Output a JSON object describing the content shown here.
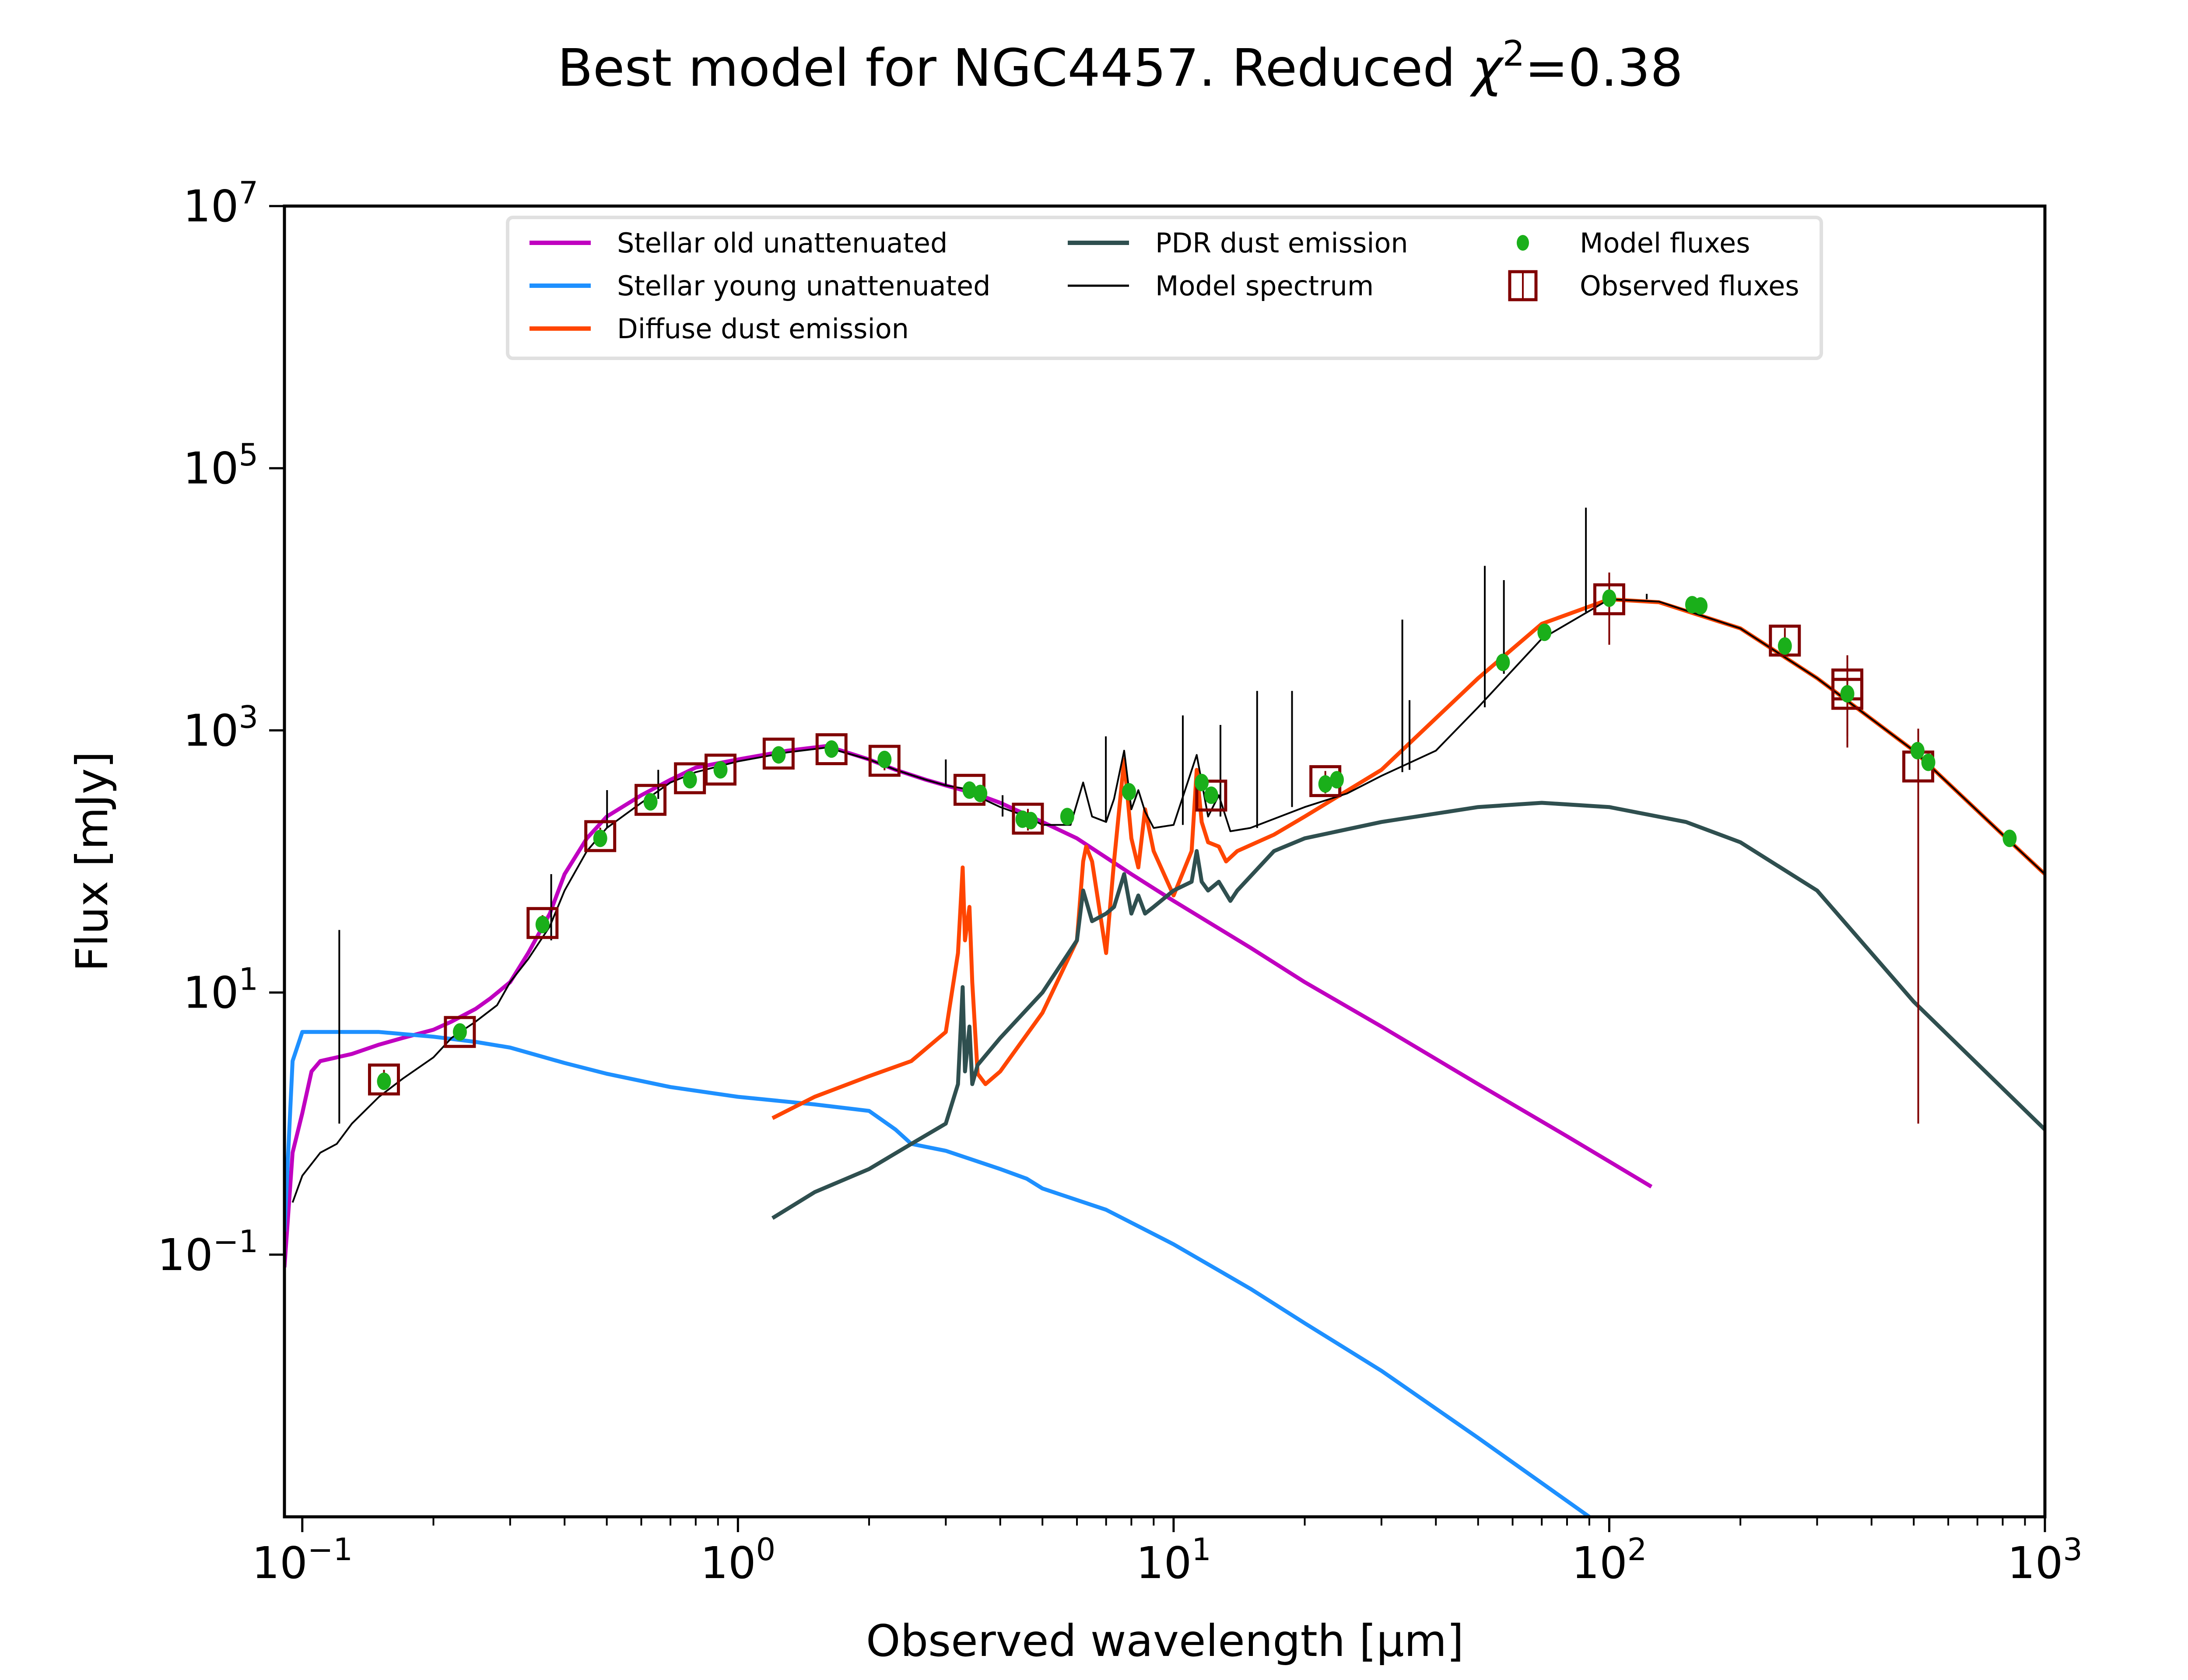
{
  "chart_data": {
    "type": "line",
    "title": "Best model for NGC4457. Reduced χ²=0.38",
    "title_parts": {
      "prefix": "Best model for NGC4457. Reduced ",
      "chi": "χ",
      "sup": "2",
      "suffix": "=0.38"
    },
    "xlabel": "Observed wavelength [μm]",
    "ylabel": "Flux [mJy]",
    "xscale": "log",
    "yscale": "log",
    "xlim": [
      0.091,
      1000
    ],
    "ylim": [
      0.001,
      10000000
    ],
    "x_ticks": [
      {
        "value": 0.1,
        "base": "10",
        "exp": "−1"
      },
      {
        "value": 1,
        "base": "10",
        "exp": "0"
      },
      {
        "value": 10,
        "base": "10",
        "exp": "1"
      },
      {
        "value": 100,
        "base": "10",
        "exp": "2"
      },
      {
        "value": 1000,
        "base": "10",
        "exp": "3"
      }
    ],
    "y_ticks": [
      {
        "value": 0.1,
        "base": "10",
        "exp": "−1"
      },
      {
        "value": 10,
        "base": "10",
        "exp": "1"
      },
      {
        "value": 1000,
        "base": "10",
        "exp": "3"
      },
      {
        "value": 100000,
        "base": "10",
        "exp": "5"
      },
      {
        "value": 10000000,
        "base": "10",
        "exp": "7"
      }
    ],
    "grid": false,
    "legend": {
      "placement": "top-center",
      "columns": 3,
      "entries": [
        {
          "label": "Stellar old unattenuated",
          "kind": "line",
          "color": "#c000c0"
        },
        {
          "label": "Stellar young unattenuated",
          "kind": "line",
          "color": "#1e90ff"
        },
        {
          "label": "Diffuse dust emission",
          "kind": "line",
          "color": "#ff4500"
        },
        {
          "label": "PDR dust emission",
          "kind": "line",
          "color": "#2f4f4f"
        },
        {
          "label": "Model spectrum",
          "kind": "line",
          "color": "#000000"
        },
        {
          "label": "Model fluxes",
          "kind": "marker-dot",
          "color": "#1aaf1a"
        },
        {
          "label": "Observed fluxes",
          "kind": "marker-square",
          "color": "#800000"
        }
      ]
    },
    "series": [
      {
        "name": "Stellar old unattenuated",
        "color": "#c000c0",
        "x": [
          0.091,
          0.095,
          0.1,
          0.105,
          0.11,
          0.12,
          0.13,
          0.15,
          0.17,
          0.2,
          0.22,
          0.25,
          0.27,
          0.3,
          0.33,
          0.37,
          0.4,
          0.45,
          0.5,
          0.6,
          0.7,
          0.8,
          1.0,
          1.3,
          1.6,
          2.0,
          2.3,
          2.7,
          3.0,
          3.5,
          4.0,
          5.0,
          6.0,
          8.0,
          10,
          15,
          20,
          30,
          50,
          80,
          125
        ],
        "y": [
          0.08,
          0.6,
          1.2,
          2.5,
          3.0,
          3.2,
          3.4,
          4.0,
          4.5,
          5.2,
          6.0,
          7.5,
          9.0,
          12,
          20,
          40,
          80,
          150,
          220,
          320,
          420,
          520,
          600,
          700,
          760,
          600,
          500,
          420,
          380,
          330,
          280,
          200,
          150,
          80,
          50,
          22,
          12,
          5.5,
          2.0,
          0.8,
          0.33
        ]
      },
      {
        "name": "Stellar young unattenuated",
        "color": "#1e90ff",
        "x": [
          0.091,
          0.095,
          0.1,
          0.12,
          0.15,
          0.2,
          0.25,
          0.3,
          0.4,
          0.5,
          0.7,
          1.0,
          1.5,
          2.0,
          2.3,
          2.5,
          3.0,
          4.0,
          4.6,
          5.0,
          7.0,
          10,
          15,
          20,
          30,
          50,
          90
        ],
        "y": [
          0.15,
          3.0,
          5.0,
          5.0,
          5.0,
          4.6,
          4.2,
          3.8,
          2.9,
          2.4,
          1.9,
          1.6,
          1.4,
          1.25,
          0.9,
          0.7,
          0.62,
          0.45,
          0.38,
          0.32,
          0.22,
          0.12,
          0.055,
          0.03,
          0.013,
          0.004,
          0.001
        ]
      },
      {
        "name": "Diffuse dust emission",
        "color": "#ff4500",
        "x": [
          1.2,
          1.5,
          2.0,
          2.5,
          3.0,
          3.2,
          3.28,
          3.32,
          3.4,
          3.45,
          3.55,
          3.7,
          4.0,
          5.0,
          6.0,
          6.2,
          6.3,
          6.5,
          7.0,
          7.3,
          7.7,
          8.0,
          8.3,
          8.6,
          9.0,
          10,
          11.0,
          11.3,
          11.6,
          12.0,
          12.7,
          13.2,
          14,
          17,
          20,
          30,
          50,
          70,
          100,
          130,
          200,
          300,
          500,
          800,
          1000
        ],
        "y": [
          1.1,
          1.6,
          2.3,
          3.0,
          5.0,
          20,
          90,
          25,
          45,
          12,
          2.4,
          2.0,
          2.5,
          7.0,
          25,
          100,
          130,
          100,
          20,
          100,
          600,
          150,
          90,
          250,
          120,
          55,
          120,
          500,
          200,
          140,
          130,
          100,
          120,
          160,
          220,
          500,
          2500,
          6500,
          10000,
          9500,
          6000,
          2500,
          700,
          160,
          80
        ]
      },
      {
        "name": "PDR dust emission",
        "color": "#2f4f4f",
        "x": [
          1.2,
          1.5,
          2.0,
          2.5,
          3.0,
          3.2,
          3.28,
          3.32,
          3.4,
          3.45,
          3.55,
          4.0,
          5.0,
          6.0,
          6.2,
          6.5,
          7.0,
          7.3,
          7.7,
          8.0,
          8.3,
          8.6,
          9.0,
          10,
          11.0,
          11.3,
          11.6,
          12.0,
          12.7,
          13.5,
          14,
          17,
          20,
          30,
          50,
          70,
          100,
          150,
          200,
          300,
          500,
          1000
        ],
        "y": [
          0.19,
          0.3,
          0.45,
          0.7,
          1.0,
          2.0,
          11,
          2.5,
          5.5,
          2.0,
          2.8,
          4.5,
          10,
          25,
          60,
          35,
          40,
          45,
          80,
          40,
          55,
          40,
          45,
          60,
          70,
          120,
          70,
          60,
          70,
          50,
          60,
          120,
          150,
          200,
          260,
          280,
          260,
          200,
          140,
          60,
          8.5,
          0.9
        ]
      },
      {
        "name": "Model spectrum",
        "color": "#000000",
        "x": [
          0.095,
          0.1,
          0.11,
          0.12,
          0.13,
          0.15,
          0.17,
          0.2,
          0.22,
          0.25,
          0.28,
          0.3,
          0.33,
          0.37,
          0.4,
          0.45,
          0.5,
          0.6,
          0.7,
          0.8,
          1.0,
          1.3,
          1.6,
          2.0,
          2.3,
          2.7,
          3.0,
          3.3,
          3.5,
          4.0,
          4.6,
          5.0,
          5.8,
          6.2,
          6.5,
          7.0,
          7.3,
          7.7,
          8.0,
          8.3,
          8.6,
          9.0,
          10,
          11.3,
          12.0,
          12.7,
          13.5,
          15,
          20,
          25,
          30,
          40,
          50,
          70,
          100,
          130,
          200,
          300,
          500,
          800,
          1000
        ],
        "y": [
          0.25,
          0.4,
          0.6,
          0.7,
          1.0,
          1.6,
          2.2,
          3.2,
          4.5,
          6.0,
          8.0,
          12,
          18,
          32,
          60,
          120,
          180,
          280,
          400,
          480,
          580,
          680,
          740,
          600,
          500,
          420,
          380,
          360,
          320,
          260,
          220,
          190,
          190,
          400,
          220,
          200,
          300,
          700,
          250,
          350,
          240,
          180,
          190,
          650,
          220,
          320,
          170,
          180,
          260,
          330,
          450,
          700,
          1500,
          5000,
          10000,
          9600,
          6000,
          2500,
          700,
          160,
          80
        ]
      }
    ],
    "model_fluxes": {
      "color": "#1aaf1a",
      "x": [
        0.154,
        0.23,
        0.356,
        0.483,
        0.63,
        0.776,
        0.912,
        1.24,
        1.64,
        2.17,
        3.4,
        3.6,
        4.5,
        4.7,
        5.7,
        7.9,
        11.6,
        12.2,
        22.3,
        23.7,
        57,
        71,
        100,
        155,
        162,
        253,
        352,
        510,
        540,
        830
      ],
      "y": [
        2.1,
        5.0,
        33,
        150,
        285,
        420,
        500,
        650,
        720,
        600,
        350,
        330,
        210,
        205,
        220,
        340,
        400,
        320,
        390,
        420,
        3300,
        5600,
        10200,
        9100,
        8900,
        4400,
        1900,
        700,
        570,
        150
      ]
    },
    "observed_fluxes": {
      "color": "#800000",
      "x": [
        0.154,
        0.23,
        0.356,
        0.483,
        0.63,
        0.776,
        0.912,
        1.24,
        1.64,
        2.17,
        3.4,
        4.63,
        12.2,
        22.3,
        100,
        253,
        352,
        352,
        512
      ],
      "y": [
        2.17,
        5.0,
        33.9,
        156,
        295,
        431,
        502,
        665,
        718,
        586,
        352,
        212,
        318,
        410,
        10000,
        4840,
        2240,
        1900,
        530
      ],
      "yerr_low": [
        0.35,
        0.5,
        5,
        25,
        30,
        40,
        50,
        50,
        80,
        90,
        30,
        40,
        40,
        80,
        5500,
        1200,
        1500,
        1000,
        529
      ],
      "yerr_high": [
        0.4,
        0.5,
        5,
        25,
        30,
        40,
        50,
        50,
        80,
        90,
        30,
        40,
        40,
        80,
        6000,
        1200,
        1500,
        1000,
        500
      ]
    },
    "emission_lines": {
      "color": "#000000",
      "x": [
        0.1216,
        0.3727,
        0.5007,
        0.6563,
        3.0,
        4.05,
        6.99,
        10.5,
        12.81,
        15.55,
        18.7,
        33.5,
        34.8,
        51.8,
        57.3,
        88.4,
        121.9,
        157.7
      ],
      "y_peak": [
        30,
        80,
        350,
        500,
        600,
        320,
        900,
        1300,
        1100,
        2000,
        2000,
        7000,
        1700,
        18000,
        14000,
        50000,
        11000,
        9700
      ],
      "y_base": [
        1.0,
        25,
        180,
        300,
        380,
        220,
        200,
        190,
        220,
        180,
        260,
        480,
        500,
        1500,
        2700,
        8000,
        10000,
        9500
      ]
    }
  }
}
